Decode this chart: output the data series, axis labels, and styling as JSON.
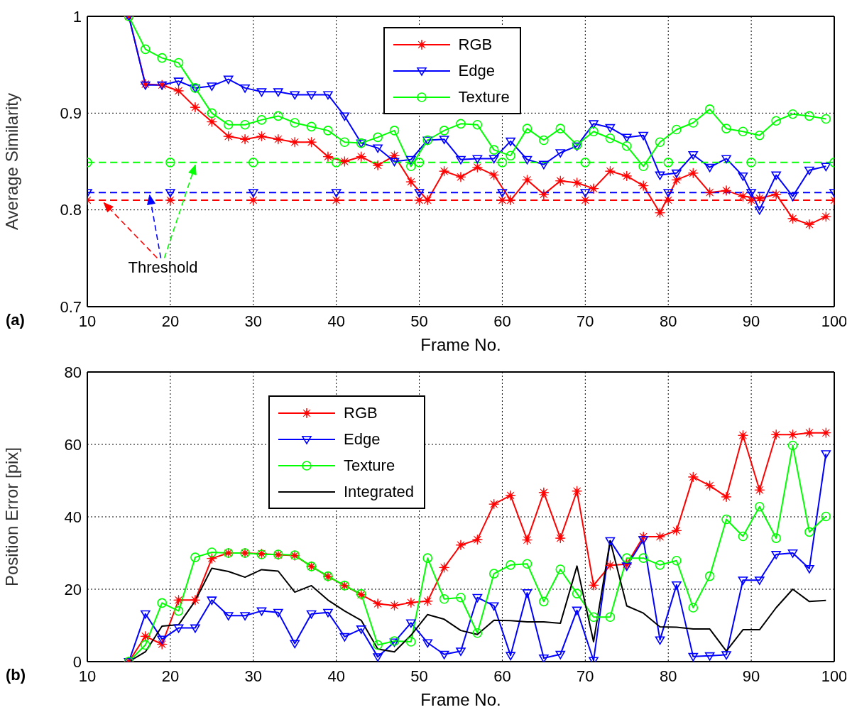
{
  "chart_data": [
    {
      "type": "line",
      "xlabel": "Frame No.",
      "ylabel": "Average Similarity",
      "annotations": [
        "(a)",
        {
          "text": "Threshold",
          "x": 12,
          "y": 0.81
        }
      ],
      "x": [
        15,
        17,
        19,
        21,
        23,
        25,
        27,
        29,
        31,
        33,
        35,
        37,
        39,
        41,
        43,
        45,
        47,
        49,
        51,
        53,
        55,
        57,
        59,
        61,
        63,
        65,
        67,
        69,
        71,
        73,
        75,
        77,
        79,
        81,
        83,
        85,
        87,
        89,
        91,
        93,
        95,
        97,
        99
      ],
      "xlim": [
        10,
        100
      ],
      "xticks": [
        10,
        20,
        30,
        40,
        50,
        60,
        70,
        80,
        90,
        100
      ],
      "ylim": [
        0.7,
        1
      ],
      "yticks": [
        0.7,
        0.8,
        0.9,
        1
      ],
      "grid": true,
      "legend": "top",
      "series": [
        {
          "name": "RGB",
          "color": "#ff0000",
          "marker": "star",
          "values": [
            1.0,
            0.93,
            0.929,
            0.923,
            0.906,
            0.891,
            0.876,
            0.873,
            0.876,
            0.873,
            0.87,
            0.87,
            0.855,
            0.85,
            0.855,
            0.846,
            0.856,
            0.829,
            0.81,
            0.84,
            0.834,
            0.844,
            0.836,
            0.81,
            0.831,
            0.816,
            0.83,
            0.828,
            0.822,
            0.84,
            0.835,
            0.825,
            0.797,
            0.831,
            0.838,
            0.818,
            0.82,
            0.814,
            0.812,
            0.816,
            0.791,
            0.785,
            0.793
          ]
        },
        {
          "name": "Edge",
          "color": "#0000ff",
          "marker": "triangle",
          "values": [
            1.0,
            0.929,
            0.929,
            0.933,
            0.926,
            0.928,
            0.935,
            0.926,
            0.922,
            0.922,
            0.919,
            0.919,
            0.919,
            0.897,
            0.869,
            0.864,
            0.85,
            0.852,
            0.872,
            0.873,
            0.852,
            0.853,
            0.853,
            0.871,
            0.852,
            0.847,
            0.859,
            0.866,
            0.889,
            0.885,
            0.875,
            0.877,
            0.836,
            0.838,
            0.857,
            0.844,
            0.853,
            0.835,
            0.8,
            0.836,
            0.814,
            0.841,
            0.845
          ]
        },
        {
          "name": "Texture",
          "color": "#00ff00",
          "marker": "circle",
          "values": [
            1.0,
            0.966,
            0.957,
            0.952,
            0.926,
            0.9,
            0.888,
            0.888,
            0.893,
            0.897,
            0.89,
            0.886,
            0.882,
            0.87,
            0.869,
            0.875,
            0.882,
            0.845,
            0.872,
            0.882,
            0.889,
            0.888,
            0.862,
            0.856,
            0.884,
            0.872,
            0.884,
            0.867,
            0.881,
            0.874,
            0.866,
            0.845,
            0.87,
            0.883,
            0.89,
            0.904,
            0.884,
            0.881,
            0.877,
            0.892,
            0.899,
            0.897,
            0.894
          ]
        },
        {
          "color": "#ff0000",
          "marker": "star",
          "line_style": "dashed",
          "x": [
            10,
            20,
            30,
            40,
            50,
            60,
            70,
            80,
            90,
            100
          ],
          "values": [
            0.81,
            0.81,
            0.81,
            0.81,
            0.81,
            0.81,
            0.81,
            0.81,
            0.81,
            0.81
          ]
        },
        {
          "color": "#0000ff",
          "marker": "triangle",
          "line_style": "dashed",
          "x": [
            10,
            20,
            30,
            40,
            50,
            60,
            70,
            80,
            90,
            100
          ],
          "values": [
            0.818,
            0.818,
            0.818,
            0.818,
            0.818,
            0.818,
            0.818,
            0.818,
            0.818,
            0.818
          ]
        },
        {
          "color": "#00ff00",
          "marker": "circle",
          "line_style": "dashed",
          "x": [
            10,
            20,
            30,
            40,
            50,
            60,
            70,
            80,
            90,
            100
          ],
          "values": [
            0.849,
            0.849,
            0.849,
            0.849,
            0.849,
            0.849,
            0.849,
            0.849,
            0.849,
            0.849
          ]
        }
      ]
    },
    {
      "type": "line",
      "xlabel": "Frame No.",
      "ylabel": "Position Error  [pix]",
      "annotations": [
        "(b)"
      ],
      "x": [
        15,
        17,
        19,
        21,
        23,
        25,
        27,
        29,
        31,
        33,
        35,
        37,
        39,
        41,
        43,
        45,
        47,
        49,
        51,
        53,
        55,
        57,
        59,
        61,
        63,
        65,
        67,
        69,
        71,
        73,
        75,
        77,
        79,
        81,
        83,
        85,
        87,
        89,
        91,
        93,
        95,
        97,
        99
      ],
      "xlim": [
        10,
        100
      ],
      "xticks": [
        10,
        20,
        30,
        40,
        50,
        60,
        70,
        80,
        90,
        100
      ],
      "ylim": [
        0,
        80
      ],
      "yticks": [
        0,
        20,
        40,
        60,
        80
      ],
      "grid": true,
      "legend": "top left",
      "series": [
        {
          "name": "RGB",
          "color": "#ff0000",
          "marker": "star",
          "values": [
            0,
            7,
            4.8,
            17,
            17,
            28.5,
            30,
            30,
            29.8,
            29.5,
            29.3,
            26.3,
            23.5,
            21,
            18.5,
            16,
            15.5,
            16.3,
            16.7,
            26,
            32.2,
            33.7,
            43.5,
            45.9,
            33.6,
            46.7,
            34.1,
            47.1,
            21.1,
            26.6,
            26.9,
            34.5,
            34.5,
            36.2,
            51,
            48.6,
            45.5,
            62.5,
            47.4,
            62.7,
            62.7,
            63.2,
            63.2
          ]
        },
        {
          "name": "Edge",
          "color": "#0000ff",
          "marker": "triangle",
          "values": [
            0,
            13.2,
            6.2,
            9.3,
            9.3,
            17,
            12.7,
            12.7,
            14,
            13.6,
            5,
            13.2,
            13.6,
            6.9,
            9,
            1.3,
            5.4,
            10.7,
            5.2,
            2,
            2.9,
            17.7,
            15.4,
            1.7,
            19,
            1,
            2,
            14.2,
            0.3,
            33.4,
            26.4,
            33.7,
            6,
            21.2,
            1.4,
            1.6,
            1.9,
            22.5,
            22.5,
            29.6,
            30,
            25.7,
            57.4
          ]
        },
        {
          "name": "Texture",
          "color": "#00ff00",
          "marker": "circle",
          "values": [
            0,
            4.6,
            16.2,
            14,
            28.8,
            30.2,
            30,
            30,
            29.6,
            29.6,
            29.4,
            26.3,
            23.6,
            21,
            18.7,
            4.6,
            5.7,
            5.5,
            28.6,
            17.3,
            17.7,
            7.9,
            24.3,
            26.7,
            27,
            16.6,
            25.5,
            18.8,
            12.3,
            12.3,
            28.6,
            28.6,
            26.7,
            27.9,
            14.9,
            23.6,
            39.3,
            34.6,
            42.8,
            34.1,
            59.7,
            35.8,
            40.1
          ]
        },
        {
          "name": "Integrated",
          "color": "#000000",
          "marker": "none",
          "values": [
            0,
            2.7,
            9.8,
            10.2,
            16.8,
            25.8,
            24.9,
            23.3,
            25.4,
            25,
            19.2,
            21,
            17,
            14,
            11.4,
            3.5,
            2.7,
            7.3,
            13,
            11.7,
            8.6,
            7.5,
            11.4,
            11.3,
            11,
            11,
            10.6,
            26.4,
            5.5,
            33.4,
            15.4,
            13.4,
            9.6,
            9.5,
            9,
            9,
            2.9,
            8.8,
            8.8,
            14.9,
            20,
            16.6,
            16.9
          ]
        }
      ]
    }
  ]
}
